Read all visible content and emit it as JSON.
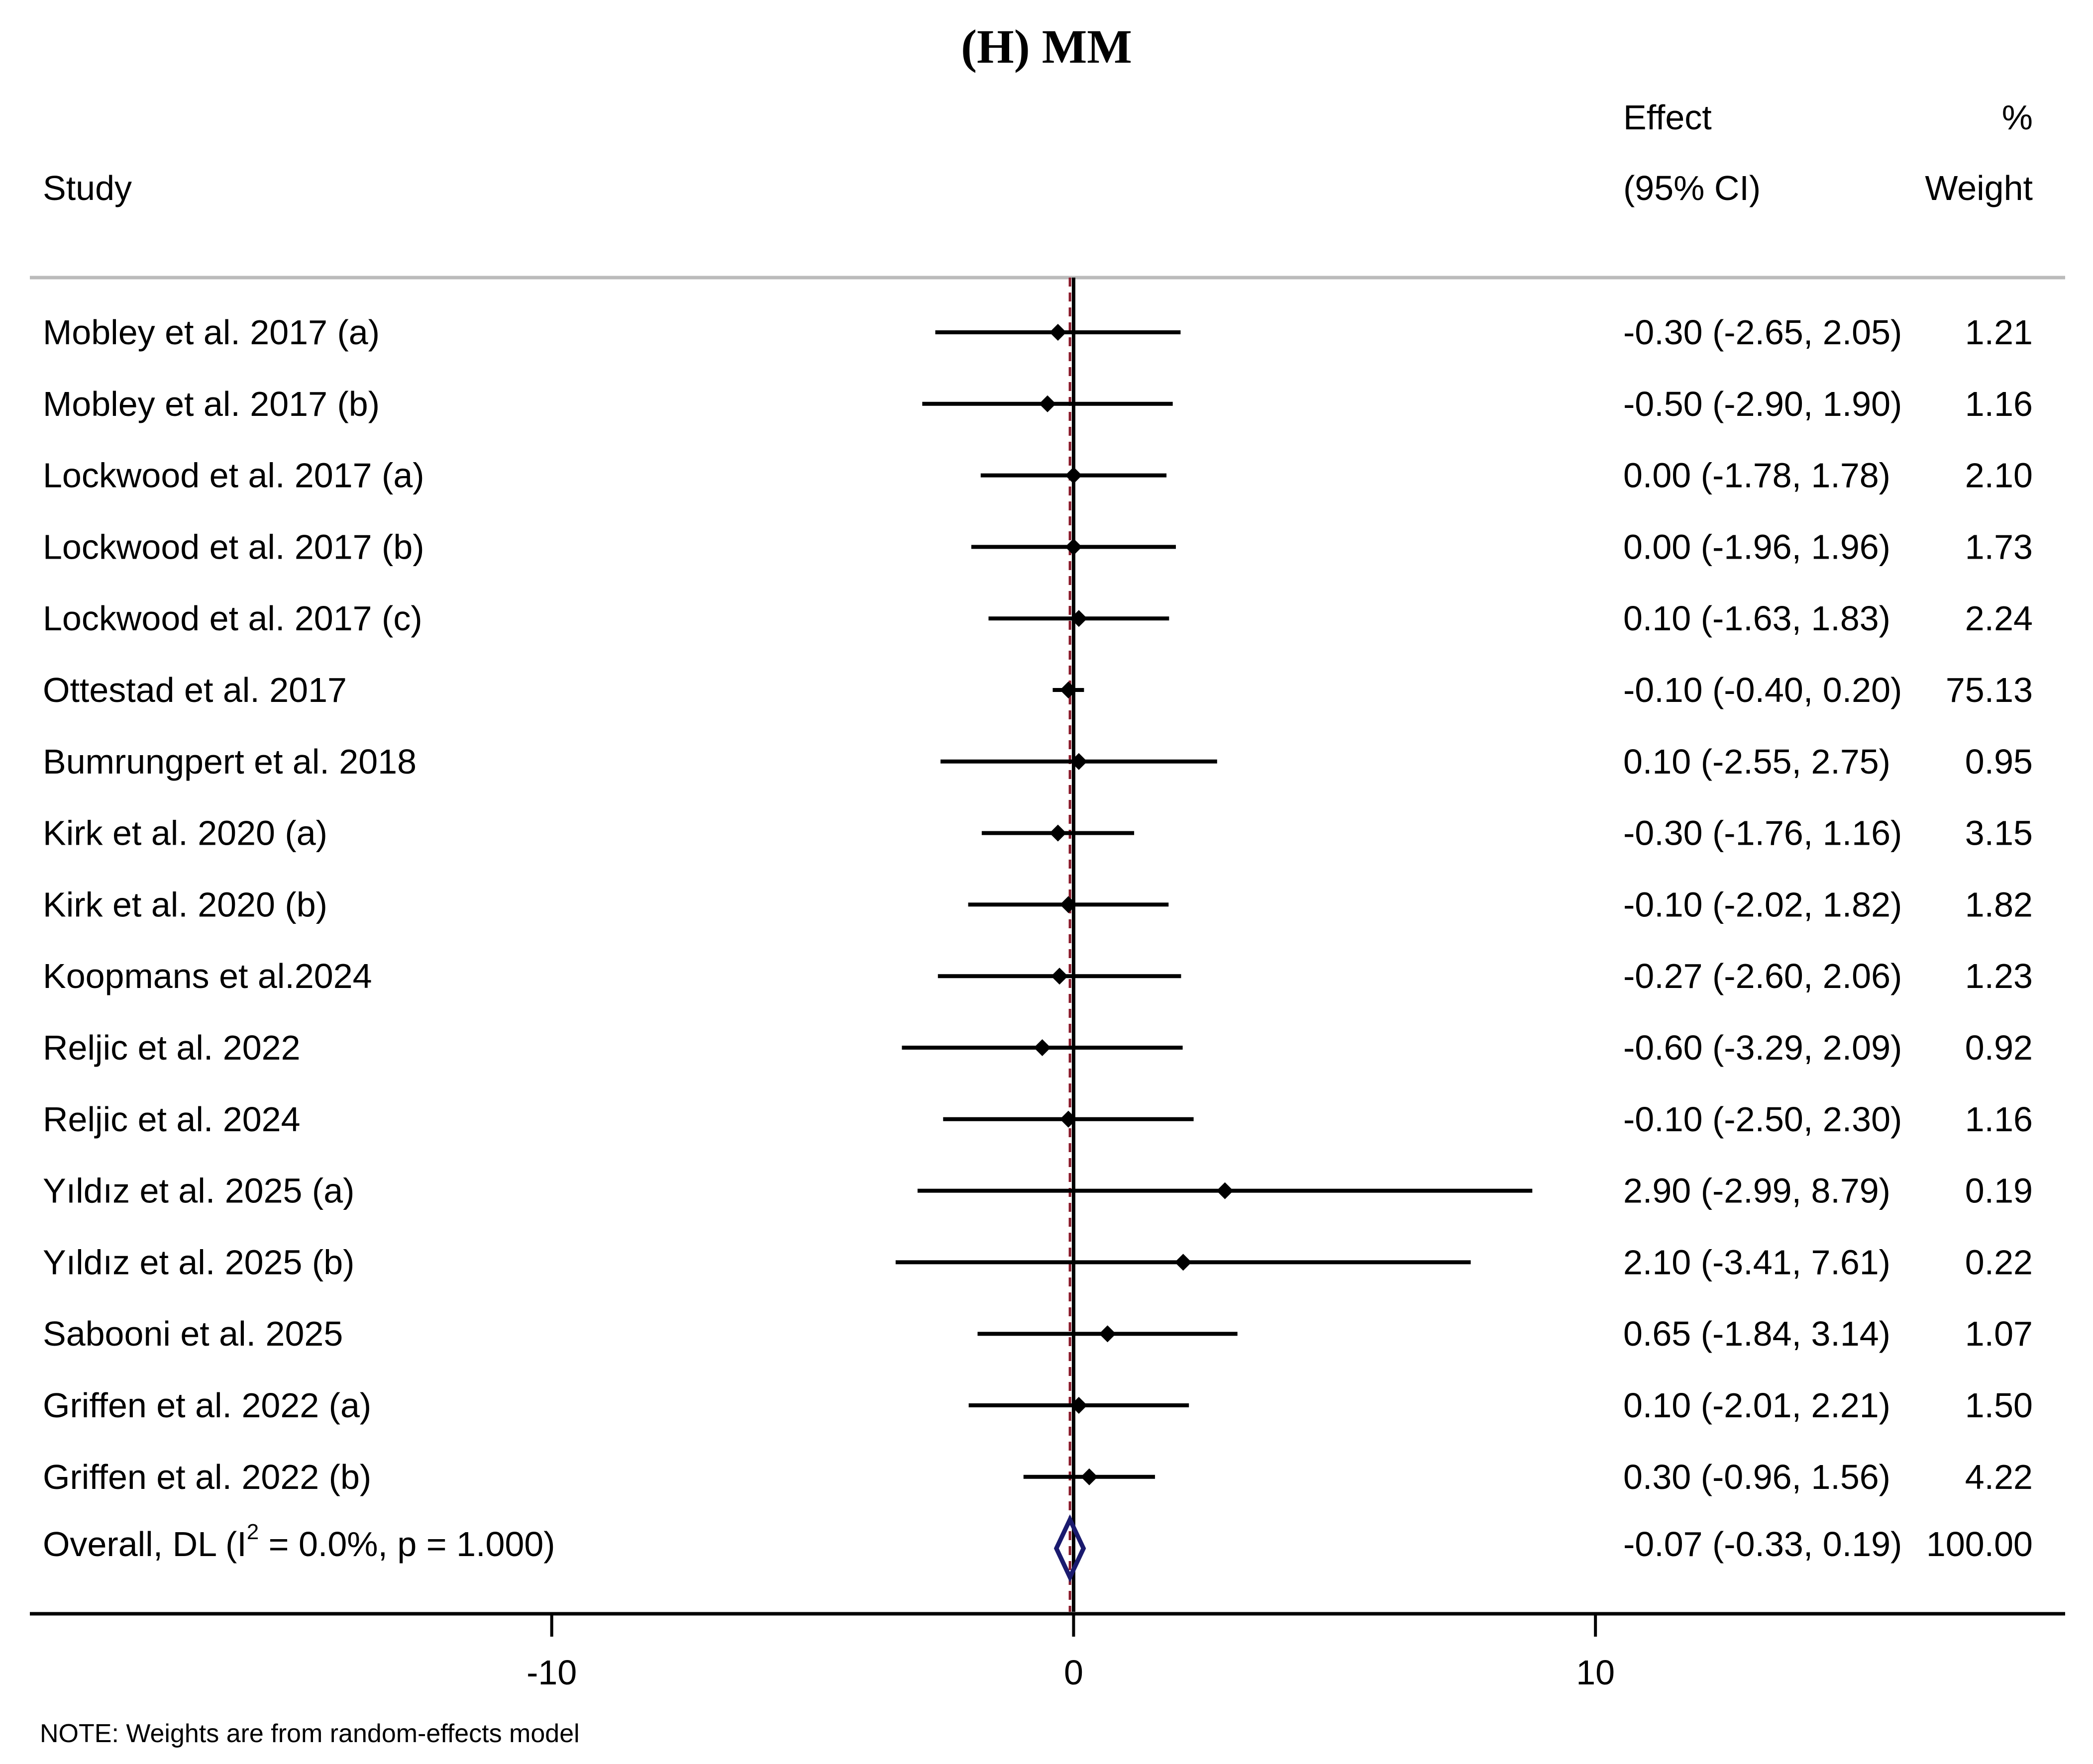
{
  "chart_data": {
    "type": "forest",
    "title": "(H) MM",
    "columns": {
      "study": "Study",
      "effect_line1": "Effect",
      "effect_line2": "(95% CI)",
      "weight_line1": "%",
      "weight_line2": "Weight"
    },
    "xlim": [
      -20,
      19
    ],
    "x_ticks": [
      -10,
      0,
      10
    ],
    "x_tick_labels": [
      "-10",
      "0",
      "10"
    ],
    "reference_line": 0,
    "studies": [
      {
        "label": "Mobley et al. 2017 (a)",
        "effect": -0.3,
        "lower": -2.65,
        "upper": 2.05,
        "ci_text": "-0.30 (-2.65, 2.05)",
        "weight": 1.21,
        "weight_text": "1.21"
      },
      {
        "label": "Mobley et al. 2017 (b)",
        "effect": -0.5,
        "lower": -2.9,
        "upper": 1.9,
        "ci_text": "-0.50 (-2.90, 1.90)",
        "weight": 1.16,
        "weight_text": "1.16"
      },
      {
        "label": "Lockwood et al. 2017 (a)",
        "effect": 0.0,
        "lower": -1.78,
        "upper": 1.78,
        "ci_text": "0.00 (-1.78, 1.78)",
        "weight": 2.1,
        "weight_text": "2.10"
      },
      {
        "label": "Lockwood et al. 2017 (b)",
        "effect": 0.0,
        "lower": -1.96,
        "upper": 1.96,
        "ci_text": "0.00 (-1.96, 1.96)",
        "weight": 1.73,
        "weight_text": "1.73"
      },
      {
        "label": "Lockwood et al. 2017 (c)",
        "effect": 0.1,
        "lower": -1.63,
        "upper": 1.83,
        "ci_text": "0.10 (-1.63, 1.83)",
        "weight": 2.24,
        "weight_text": "2.24"
      },
      {
        "label": "Ottestad et al. 2017",
        "effect": -0.1,
        "lower": -0.4,
        "upper": 0.2,
        "ci_text": "-0.10 (-0.40, 0.20)",
        "weight": 75.13,
        "weight_text": "75.13"
      },
      {
        "label": "Bumrungpert et al. 2018",
        "effect": 0.1,
        "lower": -2.55,
        "upper": 2.75,
        "ci_text": "0.10 (-2.55, 2.75)",
        "weight": 0.95,
        "weight_text": "0.95"
      },
      {
        "label": "Kirk et al. 2020 (a)",
        "effect": -0.3,
        "lower": -1.76,
        "upper": 1.16,
        "ci_text": "-0.30 (-1.76, 1.16)",
        "weight": 3.15,
        "weight_text": "3.15"
      },
      {
        "label": "Kirk et al. 2020 (b)",
        "effect": -0.1,
        "lower": -2.02,
        "upper": 1.82,
        "ci_text": "-0.10 (-2.02, 1.82)",
        "weight": 1.82,
        "weight_text": "1.82"
      },
      {
        "label": "Koopmans et al.2024",
        "effect": -0.27,
        "lower": -2.6,
        "upper": 2.06,
        "ci_text": "-0.27 (-2.60, 2.06)",
        "weight": 1.23,
        "weight_text": "1.23"
      },
      {
        "label": "Reljic et al. 2022",
        "effect": -0.6,
        "lower": -3.29,
        "upper": 2.09,
        "ci_text": "-0.60 (-3.29, 2.09)",
        "weight": 0.92,
        "weight_text": "0.92"
      },
      {
        "label": "Reljic et al. 2024",
        "effect": -0.1,
        "lower": -2.5,
        "upper": 2.3,
        "ci_text": "-0.10 (-2.50, 2.30)",
        "weight": 1.16,
        "weight_text": "1.16"
      },
      {
        "label": "Yıldız et al. 2025 (a)",
        "effect": 2.9,
        "lower": -2.99,
        "upper": 8.79,
        "ci_text": "2.90 (-2.99, 8.79)",
        "weight": 0.19,
        "weight_text": "0.19"
      },
      {
        "label": "Yıldız et al. 2025 (b)",
        "effect": 2.1,
        "lower": -3.41,
        "upper": 7.61,
        "ci_text": "2.10 (-3.41, 7.61)",
        "weight": 0.22,
        "weight_text": "0.22"
      },
      {
        "label": "Sabooni et al. 2025",
        "effect": 0.65,
        "lower": -1.84,
        "upper": 3.14,
        "ci_text": "0.65 (-1.84, 3.14)",
        "weight": 1.07,
        "weight_text": "1.07"
      },
      {
        "label": "Griffen et al. 2022 (a)",
        "effect": 0.1,
        "lower": -2.01,
        "upper": 2.21,
        "ci_text": "0.10 (-2.01, 2.21)",
        "weight": 1.5,
        "weight_text": "1.50"
      },
      {
        "label": "Griffen et al. 2022 (b)",
        "effect": 0.3,
        "lower": -0.96,
        "upper": 1.56,
        "ci_text": "0.30 (-0.96, 1.56)",
        "weight": 4.22,
        "weight_text": "4.22"
      }
    ],
    "overall": {
      "label_prefix": "Overall, DL (I",
      "label_superscript": "2",
      "label_suffix": " = 0.0%, p = 1.000)",
      "effect": -0.07,
      "lower": -0.33,
      "upper": 0.19,
      "ci_text": "-0.07 (-0.33, 0.19)",
      "weight": 100.0,
      "weight_text": "100.00"
    },
    "note": "NOTE: Weights are from random-effects model",
    "colors": {
      "marks": "#000000",
      "overall_diamond": "#1a1a6e",
      "overall_line": "#8b1a2b",
      "header_rule": "#bbbbbb"
    }
  }
}
